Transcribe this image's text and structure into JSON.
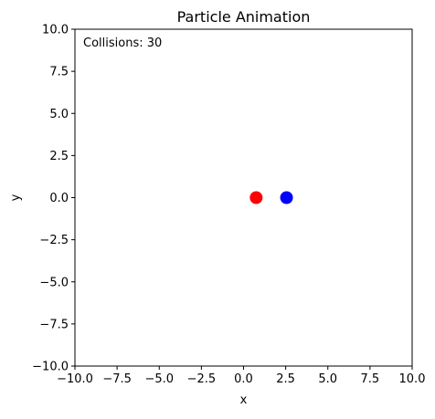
{
  "chart_data": {
    "type": "scatter",
    "title": "Particle Animation",
    "xlabel": "x",
    "ylabel": "y",
    "xlim": [
      -10,
      10
    ],
    "ylim": [
      -10,
      10
    ],
    "xticks": [
      -10,
      -7.5,
      -5,
      -2.5,
      0,
      2.5,
      5,
      7.5,
      10
    ],
    "yticks": [
      -10,
      -7.5,
      -5,
      -2.5,
      0,
      2.5,
      5,
      7.5,
      10
    ],
    "xtick_labels": [
      "−10.0",
      "−7.5",
      "−5.0",
      "−2.5",
      "0.0",
      "2.5",
      "5.0",
      "7.5",
      "10.0"
    ],
    "ytick_labels": [
      "−10.0",
      "−7.5",
      "−5.0",
      "−2.5",
      "0.0",
      "2.5",
      "5.0",
      "7.5",
      "10.0"
    ],
    "grid": false,
    "annotation": "Collisions: 30",
    "points": [
      {
        "x": 0.75,
        "y": 0.0,
        "color": "#ff0000"
      },
      {
        "x": 2.55,
        "y": 0.0,
        "color": "#0000ff"
      }
    ]
  }
}
